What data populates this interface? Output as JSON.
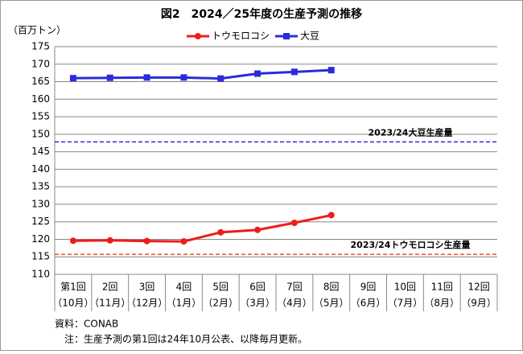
{
  "chart_data": {
    "type": "line",
    "title": "図2　2024／25年度の生産予測の推移",
    "y_label": "（百万トン）",
    "categories": [
      [
        "第1回",
        "（10月）"
      ],
      [
        "2回",
        "（11月）"
      ],
      [
        "3回",
        "（12月）"
      ],
      [
        "4回",
        "（1月）"
      ],
      [
        "5回",
        "（2月）"
      ],
      [
        "6回",
        "（3月）"
      ],
      [
        "7回",
        "（4月）"
      ],
      [
        "8回",
        "（5月）"
      ],
      [
        "9回",
        "（6月）"
      ],
      [
        "10回",
        "（7月）"
      ],
      [
        "11回",
        "（8月）"
      ],
      [
        "12回",
        "（9月）"
      ]
    ],
    "series": [
      {
        "name": "トウモロコシ",
        "color": "#ee1c1c",
        "marker": "circle",
        "values": [
          119.6,
          119.7,
          119.5,
          119.4,
          122.0,
          122.7,
          124.7,
          126.9,
          null,
          null,
          null,
          null
        ]
      },
      {
        "name": "大豆",
        "color": "#2b2bdc",
        "marker": "square",
        "values": [
          166.0,
          166.1,
          166.2,
          166.2,
          165.9,
          167.3,
          167.8,
          168.3,
          null,
          null,
          null,
          null
        ]
      }
    ],
    "reference_lines": [
      {
        "label": "2023/24大豆生産量",
        "value": 147.8,
        "color": "#2b2bdc"
      },
      {
        "label": "2023/24トウモロコシ生産量",
        "value": 115.7,
        "color": "#e8542a"
      }
    ],
    "ylim": [
      110,
      175
    ],
    "yticks": [
      110,
      115,
      120,
      125,
      130,
      135,
      140,
      145,
      150,
      155,
      160,
      165,
      170,
      175
    ],
    "grid": true,
    "legend": "top",
    "notes": [
      "資料：CONAB",
      "　注：生産予測の第1回は24年10月公表、以降毎月更新。"
    ]
  }
}
